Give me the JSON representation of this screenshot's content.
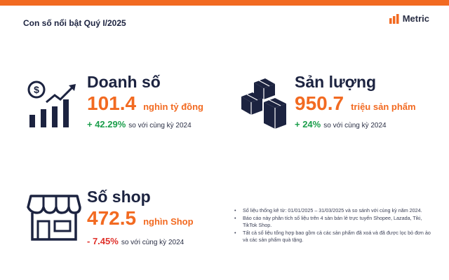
{
  "header": {
    "title": "Con số nổi bật Quý I/2025",
    "brand": "Metric"
  },
  "kpis": {
    "revenue": {
      "title": "Doanh số",
      "value": "101.4",
      "unit": "nghìn tỷ đồng",
      "change": "+ 42.29%",
      "change_text": "so với cùng kỳ 2024",
      "icon": "revenue-growth-icon"
    },
    "volume": {
      "title": "Sản lượng",
      "value": "950.7",
      "unit": "triệu sản phẩm",
      "change": "+ 24%",
      "change_text": "so với cùng kỳ 2024",
      "icon": "boxes-icon"
    },
    "shops": {
      "title": "Số shop",
      "value": "472.5",
      "unit": "nghìn Shop",
      "change": "- 7.45%",
      "change_text": "so với cùng kỳ 2024",
      "icon": "storefront-icon"
    }
  },
  "notes": [
    "Số liệu thống kê từ: 01/01/2025 – 31/03/2025 và so sánh với cùng kỳ năm 2024.",
    "Báo cáo này phân tích số liệu trên 4 sàn bán lẻ trực tuyến Shopee, Lazada, Tiki, TikTok Shop.",
    "Tất cả số liệu tổng hợp bao gồm cả các sản phẩm đã xoá và đã được lọc bỏ đơn ảo và các sản phẩm quà tặng."
  ],
  "colors": {
    "accent": "#f26a21",
    "navy": "#1c2340",
    "positive": "#1b9e4b",
    "negative": "#e0312b"
  }
}
